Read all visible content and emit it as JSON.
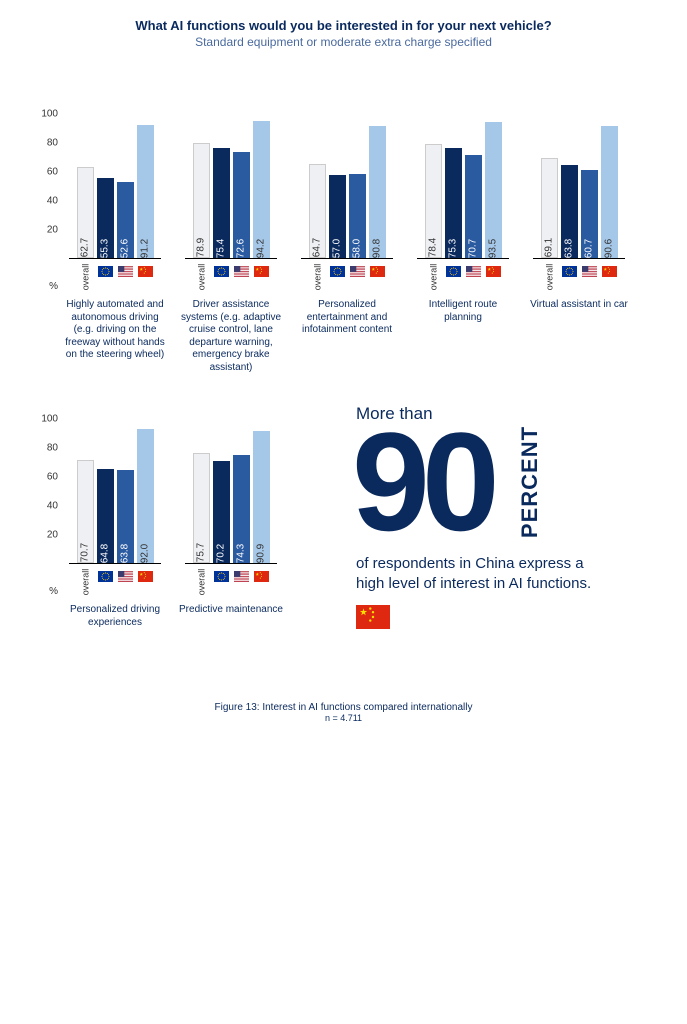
{
  "title": "What AI functions would you be interested in for your next vehicle?",
  "subtitle": "Standard equipment or moderate extra charge specified",
  "axis": {
    "ticks": [
      20,
      40,
      60,
      80,
      100
    ],
    "max": 110,
    "pct_label": "%"
  },
  "colors": {
    "overall": "#eef0f3",
    "eu": "#0a2a5e",
    "us": "#2a5aa0",
    "cn": "#a6c8e8",
    "overall_text": "#333333",
    "light_text": "#333333",
    "dark_text": "#ffffff"
  },
  "series_labels": {
    "overall": "overall"
  },
  "row1": [
    {
      "caption": "Highly automated and autonomous driving (e.g. driving on the freeway without hands on the steering wheel)",
      "values": {
        "overall": 62.7,
        "eu": 55.3,
        "us": 52.6,
        "cn": 91.2
      }
    },
    {
      "caption": "Driver assistance systems (e.g. adaptive cruise control, lane departure warning, emergency brake assistant)",
      "values": {
        "overall": 78.9,
        "eu": 75.4,
        "us": 72.6,
        "cn": 94.2
      }
    },
    {
      "caption": "Personalized entertainment and infotainment content",
      "values": {
        "overall": 64.7,
        "eu": 57.0,
        "us": 58.0,
        "cn": 90.8
      }
    },
    {
      "caption": "Intelligent route planning",
      "values": {
        "overall": 78.4,
        "eu": 75.3,
        "us": 70.7,
        "cn": 93.5
      }
    },
    {
      "caption": "Virtual assistant in car",
      "values": {
        "overall": 69.1,
        "eu": 63.8,
        "us": 60.7,
        "cn": 90.6
      }
    }
  ],
  "row2": [
    {
      "caption": "Personalized driving experiences",
      "values": {
        "overall": 70.7,
        "eu": 64.8,
        "us": 63.8,
        "cn": 92.0
      }
    },
    {
      "caption": "Predictive maintenance",
      "values": {
        "overall": 75.7,
        "eu": 70.2,
        "us": 74.3,
        "cn": 90.9
      }
    }
  ],
  "callout": {
    "top": "More than",
    "big": "90",
    "percent": "PERCENT",
    "text": "of respondents in China express a high level of interest in AI functions."
  },
  "footer": {
    "caption": "Figure 13: Interest in AI functions compared internationally",
    "n": "n = 4.711"
  }
}
